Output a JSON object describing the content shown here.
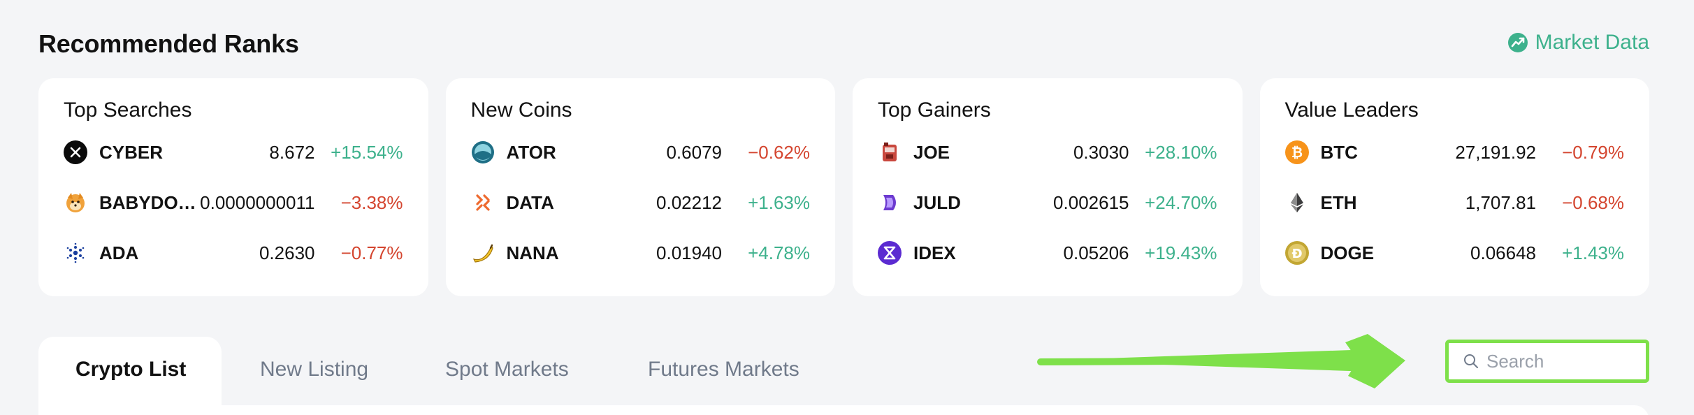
{
  "header": {
    "title": "Recommended Ranks",
    "market_link": "Market Data"
  },
  "colors": {
    "accent": "#3db18c",
    "down": "#d4452f",
    "highlight": "#7ee04a"
  },
  "cards": [
    {
      "title": "Top Searches",
      "rows": [
        {
          "icon": "cyber-icon",
          "symbol": "CYBER",
          "price": "8.672",
          "change": "+15.54%",
          "dir": "up"
        },
        {
          "icon": "babydoge-icon",
          "symbol": "BABYDO…",
          "price": "0.0000000011",
          "change": "−3.38%",
          "dir": "down"
        },
        {
          "icon": "ada-icon",
          "symbol": "ADA",
          "price": "0.2630",
          "change": "−0.77%",
          "dir": "down"
        }
      ]
    },
    {
      "title": "New Coins",
      "rows": [
        {
          "icon": "ator-icon",
          "symbol": "ATOR",
          "price": "0.6079",
          "change": "−0.62%",
          "dir": "down"
        },
        {
          "icon": "data-icon",
          "symbol": "DATA",
          "price": "0.02212",
          "change": "+1.63%",
          "dir": "up"
        },
        {
          "icon": "banana-icon",
          "symbol": "NANA",
          "price": "0.01940",
          "change": "+4.78%",
          "dir": "up"
        }
      ]
    },
    {
      "title": "Top Gainers",
      "rows": [
        {
          "icon": "joe-icon",
          "symbol": "JOE",
          "price": "0.3030",
          "change": "+28.10%",
          "dir": "up"
        },
        {
          "icon": "juld-icon",
          "symbol": "JULD",
          "price": "0.002615",
          "change": "+24.70%",
          "dir": "up"
        },
        {
          "icon": "idex-icon",
          "symbol": "IDEX",
          "price": "0.05206",
          "change": "+19.43%",
          "dir": "up"
        }
      ]
    },
    {
      "title": "Value Leaders",
      "rows": [
        {
          "icon": "btc-icon",
          "symbol": "BTC",
          "price": "27,191.92",
          "change": "−0.79%",
          "dir": "down"
        },
        {
          "icon": "eth-icon",
          "symbol": "ETH",
          "price": "1,707.81",
          "change": "−0.68%",
          "dir": "down"
        },
        {
          "icon": "doge-icon",
          "symbol": "DOGE",
          "price": "0.06648",
          "change": "+1.43%",
          "dir": "up"
        }
      ]
    }
  ],
  "tabs": [
    "Crypto List",
    "New Listing",
    "Spot Markets",
    "Futures Markets"
  ],
  "search": {
    "placeholder": "Search",
    "value": ""
  }
}
